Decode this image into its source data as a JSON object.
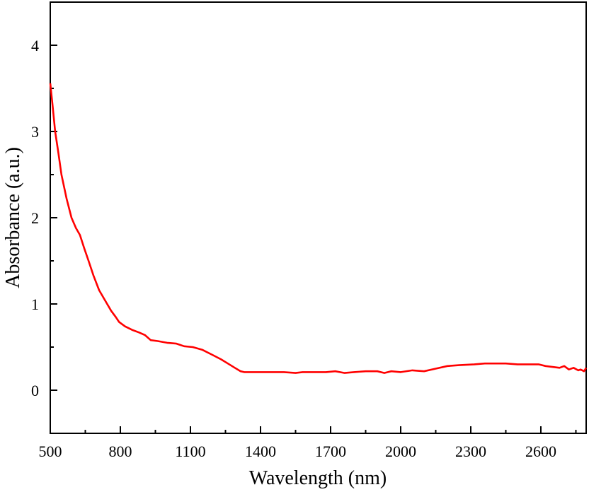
{
  "chart_data": {
    "type": "line",
    "title": "",
    "xlabel": "Wavelength (nm)",
    "ylabel": "Absorbance (a.u.)",
    "xlim": [
      500,
      2794
    ],
    "ylim": [
      -0.5,
      4.5
    ],
    "grid": false,
    "legend": null,
    "x_ticks": [
      500,
      800,
      1100,
      1400,
      1700,
      2000,
      2300,
      2600
    ],
    "x_minor_ticks": [
      650,
      950,
      1250,
      1550,
      1850,
      2150,
      2450,
      2750
    ],
    "y_ticks": [
      0,
      1,
      2,
      3,
      4
    ],
    "y_minor_ticks": [
      -0.5,
      0.5,
      1.5,
      2.5,
      3.5
    ],
    "series": [
      {
        "name": "Absorbance",
        "color": "#ff0000",
        "x": [
          500,
          510,
          521,
          535,
          548,
          570,
          591,
          610,
          627,
          645,
          664,
          685,
          709,
          735,
          761,
          780,
          795,
          820,
          850,
          880,
          905,
          930,
          960,
          1000,
          1040,
          1073,
          1110,
          1150,
          1194,
          1230,
          1260,
          1290,
          1315,
          1330,
          1350,
          1400,
          1450,
          1500,
          1550,
          1580,
          1620,
          1680,
          1720,
          1760,
          1800,
          1850,
          1900,
          1930,
          1960,
          2000,
          2050,
          2100,
          2150,
          2200,
          2250,
          2315,
          2360,
          2405,
          2450,
          2500,
          2550,
          2590,
          2620,
          2650,
          2680,
          2700,
          2720,
          2740,
          2760,
          2770,
          2785,
          2794
        ],
        "y": [
          3.56,
          3.3,
          3.0,
          2.75,
          2.5,
          2.22,
          2.0,
          1.88,
          1.8,
          1.65,
          1.5,
          1.33,
          1.16,
          1.04,
          0.92,
          0.85,
          0.79,
          0.74,
          0.7,
          0.67,
          0.64,
          0.58,
          0.57,
          0.55,
          0.54,
          0.51,
          0.5,
          0.47,
          0.41,
          0.36,
          0.31,
          0.26,
          0.22,
          0.21,
          0.21,
          0.21,
          0.21,
          0.21,
          0.2,
          0.21,
          0.21,
          0.21,
          0.22,
          0.2,
          0.21,
          0.22,
          0.22,
          0.2,
          0.22,
          0.21,
          0.23,
          0.22,
          0.25,
          0.28,
          0.29,
          0.3,
          0.31,
          0.31,
          0.31,
          0.3,
          0.3,
          0.3,
          0.28,
          0.27,
          0.26,
          0.28,
          0.24,
          0.26,
          0.23,
          0.24,
          0.22,
          0.26
        ]
      }
    ]
  }
}
